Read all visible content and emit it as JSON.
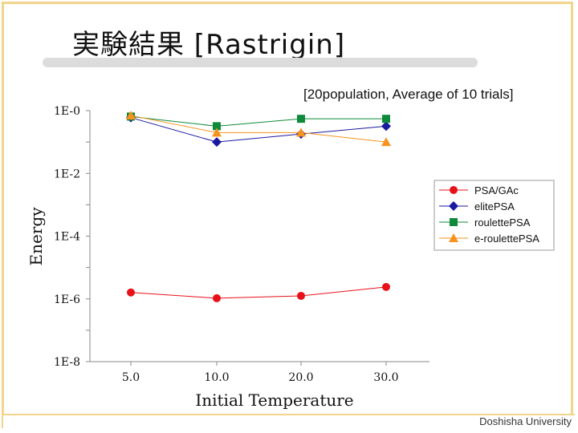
{
  "slide": {
    "title": "実験結果 [Rastrigin]",
    "subtitle": "[20population, Average of 10 trials]",
    "footer": "Doshisha University"
  },
  "chart_data": {
    "type": "line",
    "categories": [
      "5.0",
      "10.0",
      "20.0",
      "30.0"
    ],
    "xlabel": "Initial Temperature",
    "ylabel": "Energy",
    "yscale": "log",
    "ylim": [
      1e-08,
      1
    ],
    "yticks": [
      {
        "value": 1,
        "label": "1E-0"
      },
      {
        "value": 0.01,
        "label": "1E-2"
      },
      {
        "value": 0.0001,
        "label": "1E-4"
      },
      {
        "value": 1e-06,
        "label": "1E-6"
      },
      {
        "value": 1e-08,
        "label": "1E-8"
      }
    ],
    "legend_position": "right",
    "grid": false,
    "series": [
      {
        "name": "PSA/GAc",
        "color": "#e8111a",
        "marker": "circle",
        "values": [
          1.6e-06,
          1.05e-06,
          1.25e-06,
          2.4e-06
        ]
      },
      {
        "name": "elitePSA",
        "color": "#1a1aa0",
        "marker": "diamond",
        "values": [
          0.6,
          0.1,
          0.18,
          0.32
        ]
      },
      {
        "name": "roulettePSA",
        "color": "#0f8a3a",
        "marker": "square",
        "values": [
          0.65,
          0.32,
          0.55,
          0.55
        ]
      },
      {
        "name": "e-roulettePSA",
        "color": "#f7931e",
        "marker": "triangle",
        "values": [
          0.7,
          0.2,
          0.2,
          0.1
        ]
      }
    ]
  }
}
